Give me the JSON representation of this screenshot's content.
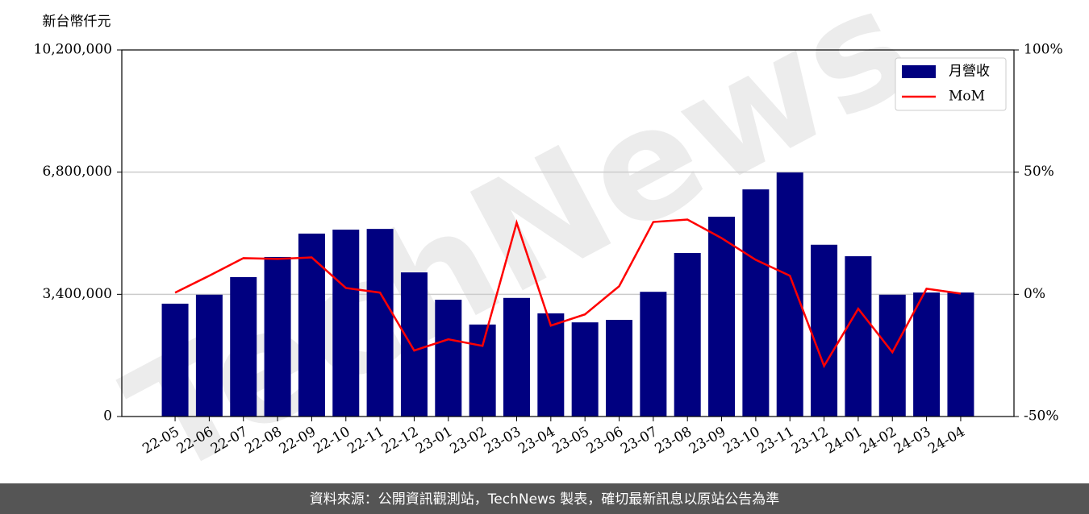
{
  "chart_data": {
    "type": "bar_line",
    "y_label": "新台幣仟元",
    "watermark": "TechNews",
    "footer": "資料來源：公開資訊觀測站，TechNews 製表，確切最新訊息以原站公告為準",
    "categories": [
      "22-05",
      "22-06",
      "22-07",
      "22-08",
      "22-09",
      "22-10",
      "22-11",
      "22-12",
      "23-01",
      "23-02",
      "23-03",
      "23-04",
      "23-05",
      "23-06",
      "23-07",
      "23-08",
      "23-09",
      "23-10",
      "23-11",
      "23-12",
      "24-01",
      "24-02",
      "24-03",
      "24-04"
    ],
    "series": [
      {
        "name": "月營收",
        "type": "bar",
        "color": "#000080",
        "values": [
          3140000,
          3390000,
          3880000,
          4440000,
          5090000,
          5200000,
          5220000,
          4010000,
          3250000,
          2560000,
          3300000,
          2870000,
          2620000,
          2690000,
          3470000,
          4550000,
          5560000,
          6320000,
          6790000,
          4780000,
          4460000,
          3390000,
          3450000,
          3450000
        ]
      },
      {
        "name": "MoM",
        "type": "line",
        "axis": "y2",
        "color": "#ff0000",
        "values": [
          0.7,
          7.6,
          14.8,
          14.5,
          15.1,
          2.6,
          0.7,
          -23.0,
          -18.4,
          -21.1,
          29.3,
          -12.8,
          -8.2,
          3.3,
          29.6,
          30.6,
          23.0,
          14.1,
          7.6,
          -29.3,
          -5.9,
          -23.7,
          2.3,
          0.3
        ]
      }
    ],
    "ylim": [
      0,
      10200000
    ],
    "yticks": [
      0,
      {
        "value": 3400000,
        "label": "3,400,000"
      },
      {
        "value": 6800000,
        "label": "6,800,000"
      },
      {
        "value": 10200000,
        "label": "10,200,000"
      }
    ],
    "y2lim": [
      -50,
      100
    ],
    "y2ticks": [
      {
        "value": -50,
        "label": "-50%"
      },
      {
        "value": 0,
        "label": "0%"
      },
      {
        "value": 50,
        "label": "50%"
      },
      {
        "value": 100,
        "label": "100%"
      }
    ],
    "grid": true,
    "legend": "upper right"
  }
}
